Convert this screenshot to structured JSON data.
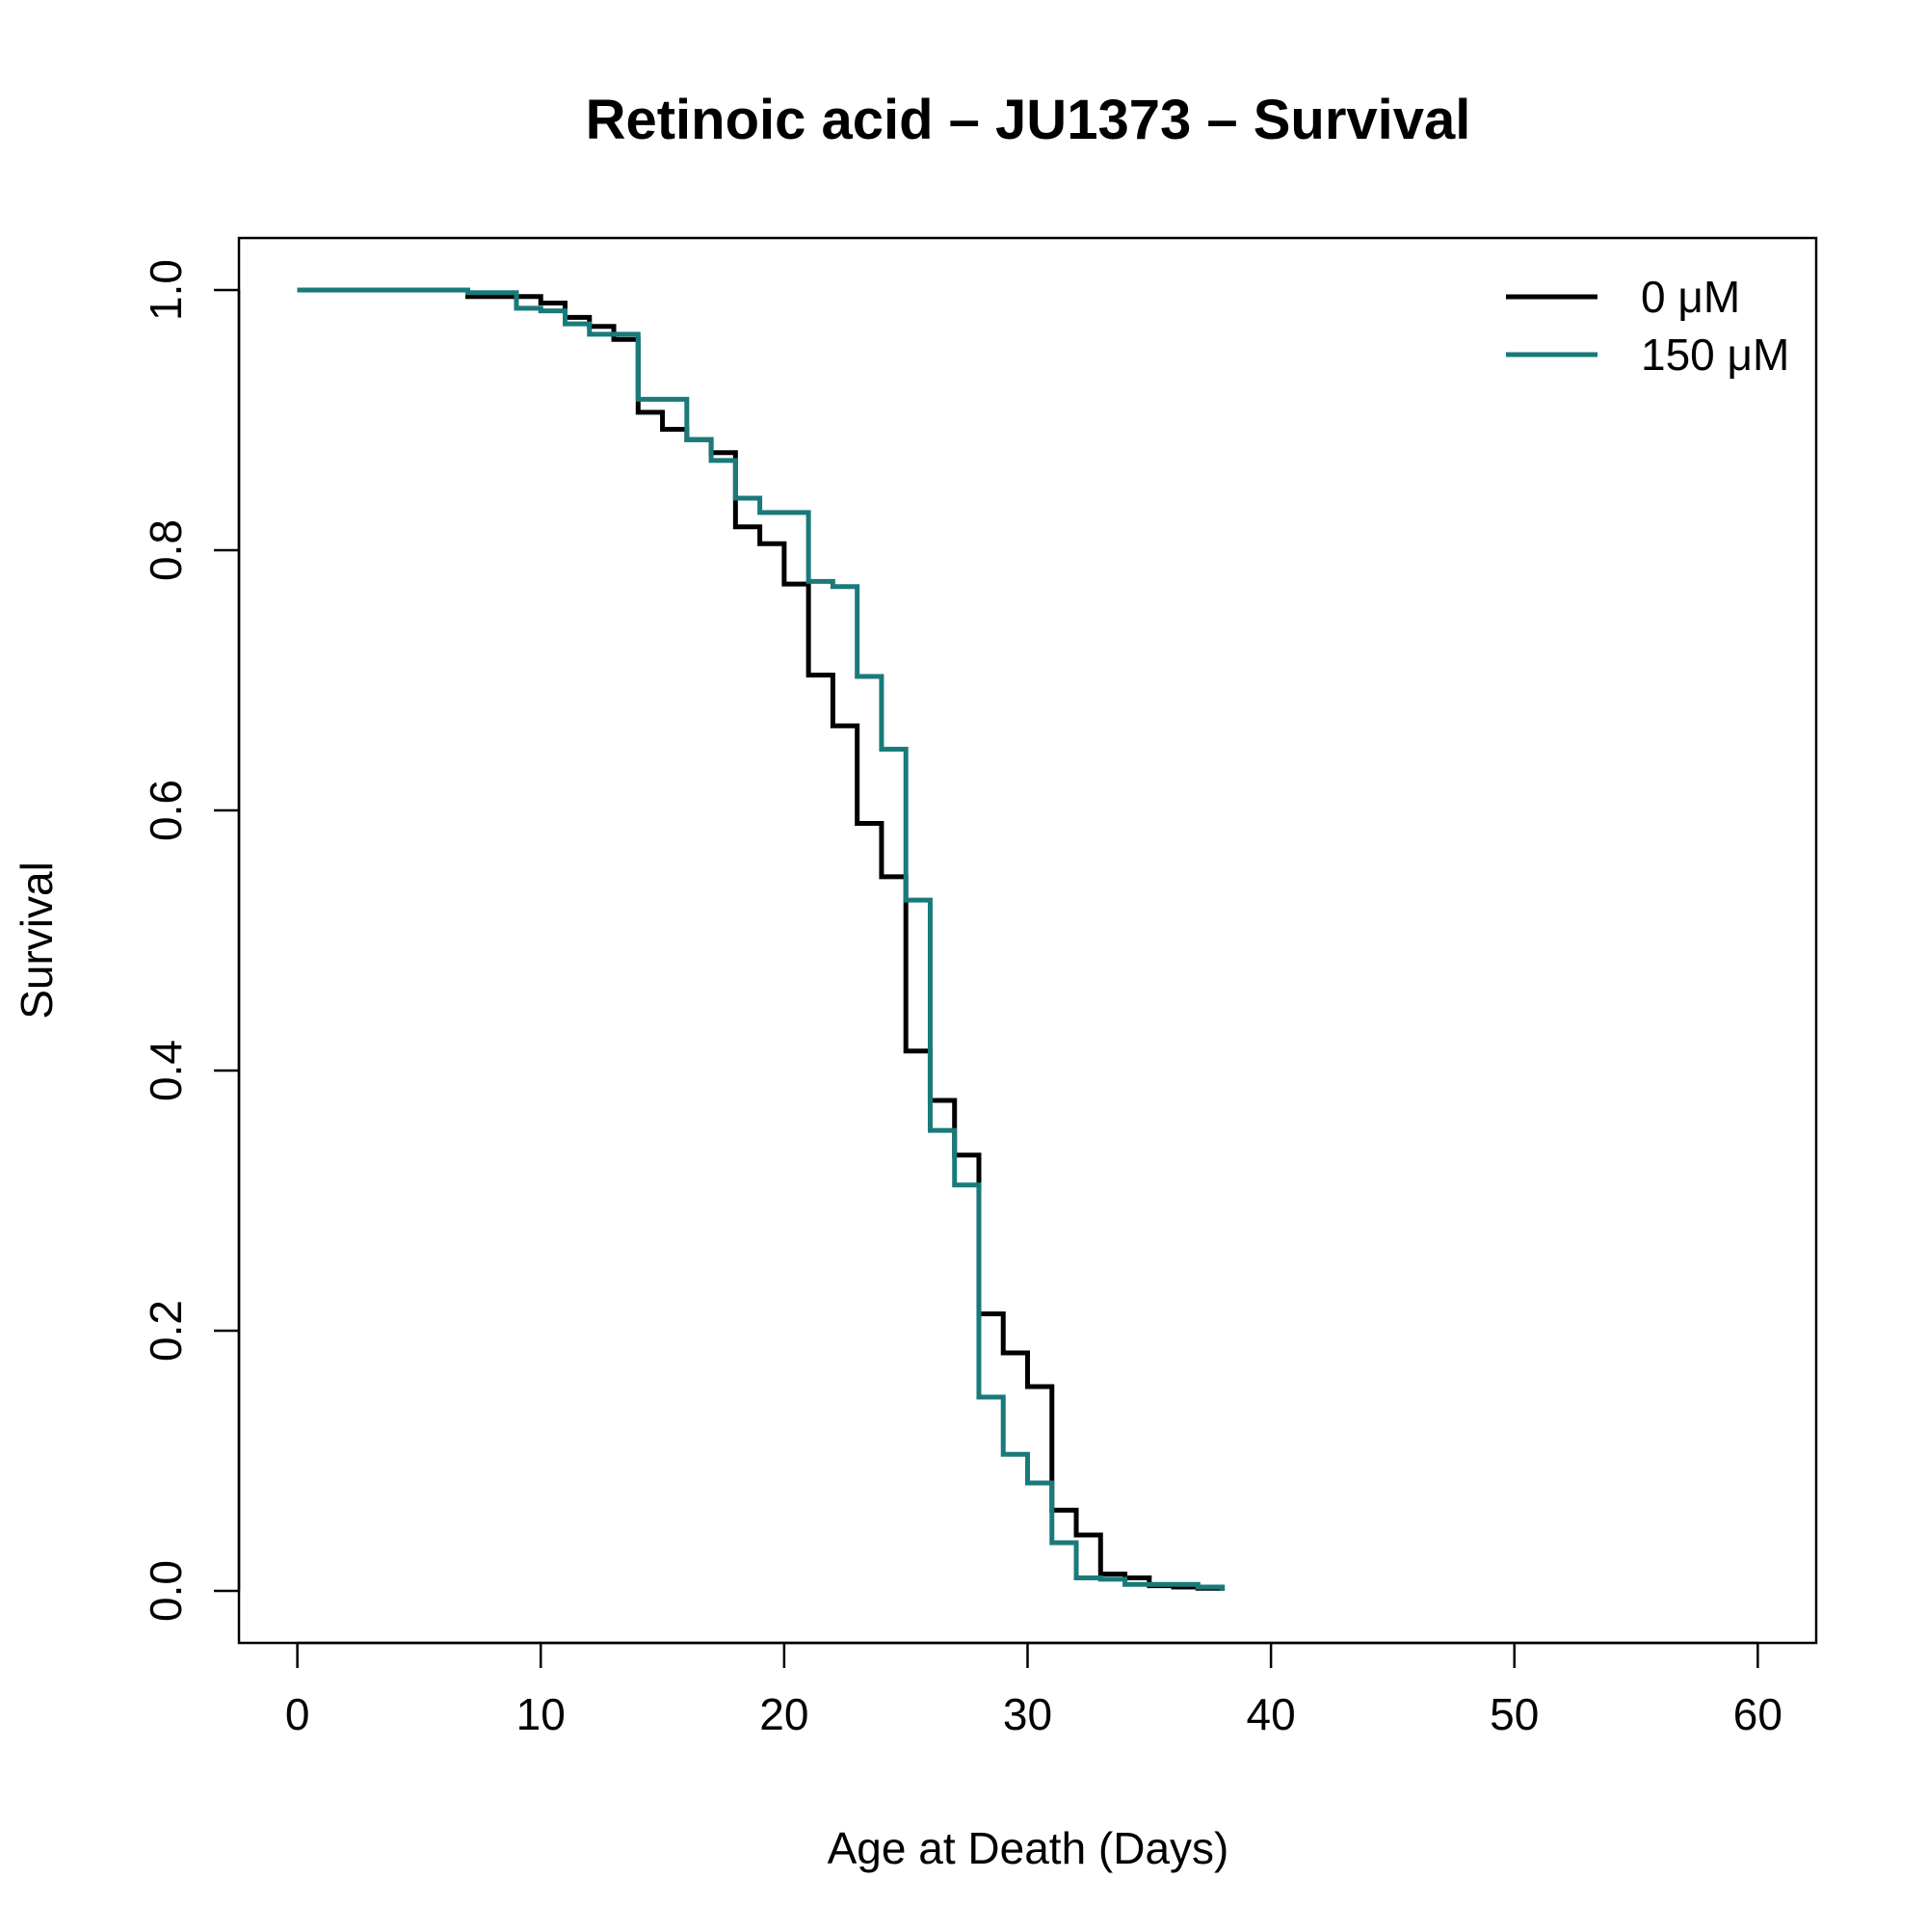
{
  "chart_data": {
    "type": "line",
    "step": true,
    "title": "Retinoic acid – JU1373 – Survival",
    "xlabel": "Age at Death (Days)",
    "ylabel": "Survival",
    "xlim": [
      -2.4,
      62.4
    ],
    "ylim": [
      -0.04,
      1.04
    ],
    "xticks": [
      0,
      10,
      20,
      30,
      40,
      50,
      60
    ],
    "yticks": [
      0.0,
      0.2,
      0.4,
      0.6,
      0.8,
      1.0
    ],
    "xtick_labels": [
      "0",
      "10",
      "20",
      "30",
      "40",
      "50",
      "60"
    ],
    "ytick_labels": [
      "0.0",
      "0.2",
      "0.4",
      "0.6",
      "0.8",
      "1.0"
    ],
    "grid": false,
    "legend_position": "top-right",
    "series": [
      {
        "name": "0 μM",
        "color": "#000000",
        "x": [
          0,
          7,
          9,
          10,
          11,
          12,
          13,
          14,
          15,
          16,
          17,
          18,
          19,
          20,
          21,
          22,
          23,
          24,
          25,
          26,
          27,
          28,
          29,
          30,
          31,
          32,
          33,
          34,
          35,
          36,
          37,
          38
        ],
        "y": [
          1.0,
          0.995,
          0.995,
          0.99,
          0.979,
          0.972,
          0.962,
          0.906,
          0.893,
          0.885,
          0.875,
          0.818,
          0.805,
          0.774,
          0.704,
          0.665,
          0.59,
          0.549,
          0.415,
          0.377,
          0.335,
          0.213,
          0.183,
          0.157,
          0.062,
          0.043,
          0.013,
          0.01,
          0.004,
          0.003,
          0.002,
          0.0
        ]
      },
      {
        "name": "150 μM",
        "color": "#1a7a7a",
        "x": [
          0,
          7,
          9,
          10,
          11,
          12,
          13,
          14,
          16,
          17,
          18,
          19,
          21,
          22,
          23,
          24,
          25,
          26,
          27,
          28,
          29,
          30,
          31,
          32,
          33,
          34,
          37,
          38
        ],
        "y": [
          1.0,
          0.998,
          0.986,
          0.984,
          0.974,
          0.966,
          0.966,
          0.916,
          0.885,
          0.869,
          0.84,
          0.829,
          0.776,
          0.772,
          0.703,
          0.647,
          0.531,
          0.354,
          0.312,
          0.149,
          0.105,
          0.083,
          0.037,
          0.01,
          0.009,
          0.005,
          0.003,
          0.0
        ]
      }
    ]
  }
}
